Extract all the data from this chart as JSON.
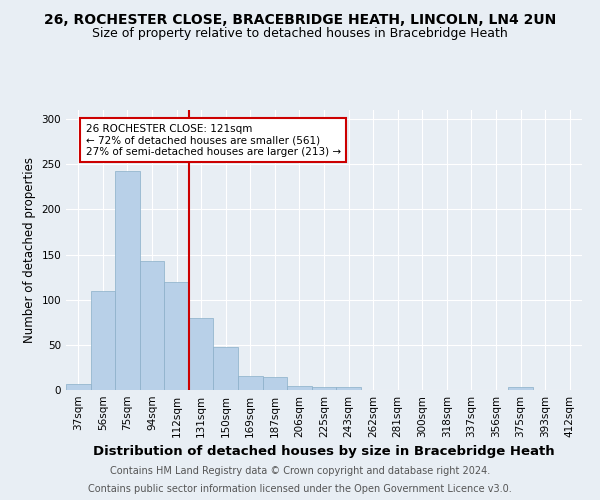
{
  "title1": "26, ROCHESTER CLOSE, BRACEBRIDGE HEATH, LINCOLN, LN4 2UN",
  "title2": "Size of property relative to detached houses in Bracebridge Heath",
  "xlabel": "Distribution of detached houses by size in Bracebridge Heath",
  "ylabel": "Number of detached properties",
  "categories": [
    "37sqm",
    "56sqm",
    "75sqm",
    "94sqm",
    "112sqm",
    "131sqm",
    "150sqm",
    "169sqm",
    "187sqm",
    "206sqm",
    "225sqm",
    "243sqm",
    "262sqm",
    "281sqm",
    "300sqm",
    "318sqm",
    "337sqm",
    "356sqm",
    "375sqm",
    "393sqm",
    "412sqm"
  ],
  "values": [
    7,
    110,
    243,
    143,
    120,
    80,
    48,
    16,
    14,
    4,
    3,
    3,
    0,
    0,
    0,
    0,
    0,
    0,
    3,
    0,
    0
  ],
  "bar_color": "#b8d0e8",
  "bar_edge_color": "#8aafc8",
  "vline_color": "#cc0000",
  "annotation_text": "26 ROCHESTER CLOSE: 121sqm\n← 72% of detached houses are smaller (561)\n27% of semi-detached houses are larger (213) →",
  "annotation_box_color": "#ffffff",
  "annotation_box_edge": "#cc0000",
  "footer1": "Contains HM Land Registry data © Crown copyright and database right 2024.",
  "footer2": "Contains public sector information licensed under the Open Government Licence v3.0.",
  "ylim": [
    0,
    310
  ],
  "yticks": [
    0,
    50,
    100,
    150,
    200,
    250,
    300
  ],
  "background_color": "#e8eef4",
  "title1_fontsize": 10,
  "title2_fontsize": 9,
  "xlabel_fontsize": 9.5,
  "ylabel_fontsize": 8.5,
  "tick_fontsize": 7.5,
  "footer_fontsize": 7,
  "annotation_fontsize": 7.5
}
